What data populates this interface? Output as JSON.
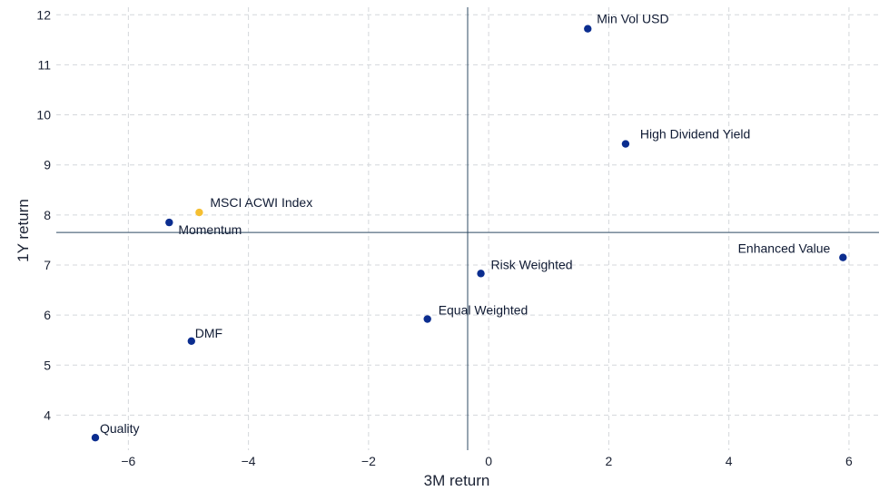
{
  "chart_data": {
    "type": "scatter",
    "title": "",
    "xlabel": "3M return",
    "ylabel": "1Y return",
    "xlim": [
      -7.2,
      6.5
    ],
    "ylim": [
      3.3,
      12.15
    ],
    "x_ticks": [
      -6,
      -4,
      -2,
      0,
      2,
      4,
      6
    ],
    "x_tick_labels": [
      "−6",
      "−4",
      "−2",
      "0",
      "2",
      "4",
      "6"
    ],
    "y_ticks": [
      4,
      5,
      6,
      7,
      8,
      9,
      10,
      11,
      12
    ],
    "y_tick_labels": [
      "4",
      "5",
      "6",
      "7",
      "8",
      "9",
      "10",
      "11",
      "12"
    ],
    "grid": true,
    "reference_lines": {
      "x": -0.35,
      "y": 7.65
    },
    "colors": {
      "default": "#0b2d8f",
      "highlight": "#f5bf32",
      "axis": "#2d4a63",
      "grid": "#d4d7db"
    },
    "points": [
      {
        "label": "Min Vol USD",
        "x": 1.65,
        "y": 11.72,
        "highlight": false
      },
      {
        "label": "High Dividend Yield",
        "x": 2.28,
        "y": 9.42,
        "highlight": false
      },
      {
        "label": "MSCI ACWI Index",
        "x": -4.82,
        "y": 8.05,
        "highlight": true
      },
      {
        "label": "Momentum",
        "x": -5.32,
        "y": 7.85,
        "highlight": false
      },
      {
        "label": "Enhanced Value",
        "x": 5.9,
        "y": 7.15,
        "highlight": false
      },
      {
        "label": "Risk Weighted",
        "x": -0.13,
        "y": 6.83,
        "highlight": false
      },
      {
        "label": "Equal Weighted",
        "x": -1.02,
        "y": 5.92,
        "highlight": false
      },
      {
        "label": "DMF",
        "x": -4.95,
        "y": 5.48,
        "highlight": false
      },
      {
        "label": "Quality",
        "x": -6.55,
        "y": 3.55,
        "highlight": false
      }
    ]
  }
}
